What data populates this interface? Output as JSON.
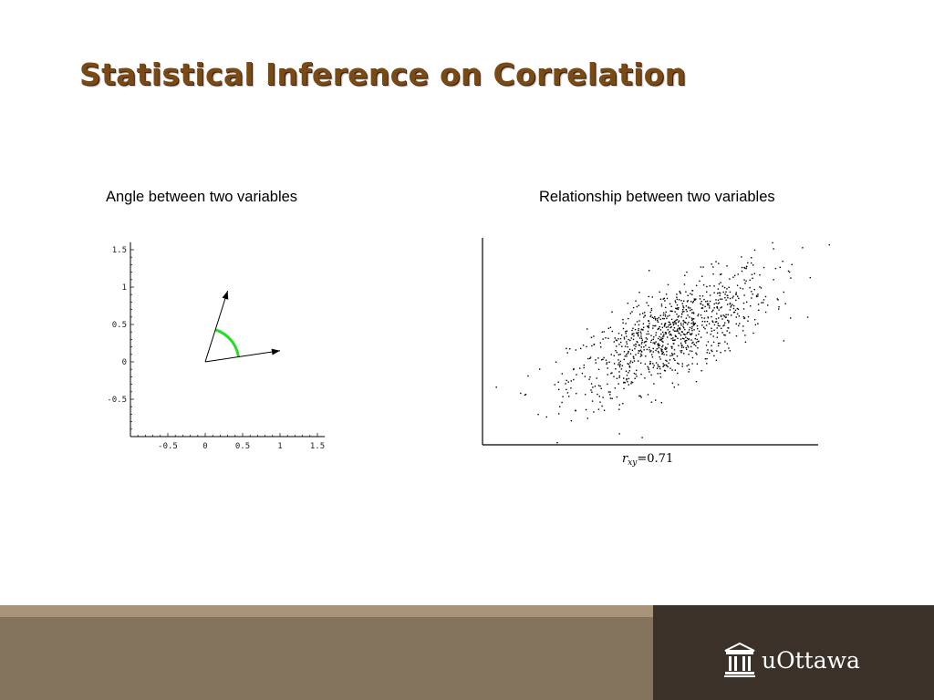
{
  "slide": {
    "title": "Statistical Inference on Correlation"
  },
  "left_panel": {
    "caption": "Angle between two variables"
  },
  "right_panel": {
    "caption": "Relationship between two variables",
    "r_symbol": "r",
    "r_subscript": "xy",
    "r_value": "=0.71"
  },
  "footer": {
    "logo_text": "uOttawa",
    "colors": {
      "stripe": "#a89478",
      "main": "#85745d",
      "dark": "#3b3128"
    }
  },
  "title_color": "#7a4a16",
  "angle_arc_color": "#22dd22",
  "chart_data": [
    {
      "type": "vector",
      "title": "",
      "xlim": [
        -1.0,
        1.6
      ],
      "ylim": [
        -1.0,
        1.6
      ],
      "xticks": [
        "-0.5",
        "0",
        "0.5",
        "1",
        "1.5"
      ],
      "xtick_values": [
        -0.5,
        0,
        0.5,
        1,
        1.5
      ],
      "yticks": [
        "1.5",
        "1",
        "0.5",
        "0",
        "-0.5"
      ],
      "ytick_values": [
        1.5,
        1,
        0.5,
        0,
        -0.5
      ],
      "vectors": [
        {
          "from": [
            0,
            0
          ],
          "to": [
            0.3,
            0.95
          ]
        },
        {
          "from": [
            0,
            0
          ],
          "to": [
            1.0,
            0.15
          ]
        }
      ],
      "angle_arc": {
        "radius": 0.45,
        "highlighted": true
      }
    },
    {
      "type": "scatter",
      "title": "",
      "annotation": "r_xy = 0.71",
      "correlation": 0.71,
      "n_points": 1000,
      "axes": {
        "ticks": false,
        "grid": false
      }
    }
  ]
}
